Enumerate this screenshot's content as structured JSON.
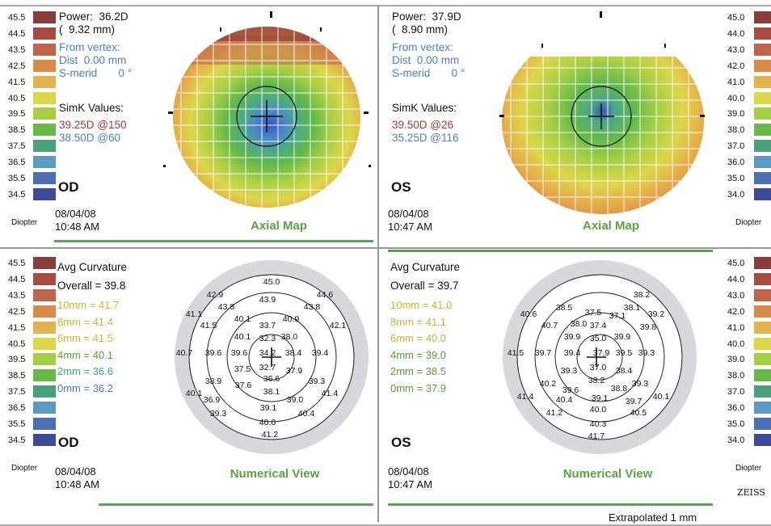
{
  "scales": {
    "values": [
      "45.5",
      "44.5",
      "43.5",
      "42.5",
      "41.5",
      "40.5",
      "39.5",
      "38.5",
      "37.5",
      "36.5",
      "35.5",
      "34.5"
    ],
    "values_right": [
      "45.0",
      "44.0",
      "43.0",
      "42.0",
      "41.0",
      "40.0",
      "39.0",
      "38.0",
      "37.0",
      "36.0",
      "35.0",
      "34.0"
    ],
    "colors": [
      "#8c3b3b",
      "#a84a3f",
      "#c0654a",
      "#d98a4b",
      "#e4b24e",
      "#d9d74a",
      "#a7cf45",
      "#69b84a",
      "#47a07a",
      "#5b9ac4",
      "#4c6fb3",
      "#3d4a99"
    ],
    "unit": "Diopter",
    "unit_short": "Diopter"
  },
  "axial": {
    "od": {
      "power_label": "Power:",
      "power_value": "36.2D",
      "radius": "(  9.32 mm)",
      "from_vertex": "From vertex:",
      "dist": "Dist  0.00 mm",
      "smerid": "S-merid       0 °",
      "simk_title": "SimK Values:",
      "simk1": "39.25D @150",
      "simk2": "38.50D @60",
      "eye": "OD",
      "date": "08/04/08",
      "time": "10:48 AM",
      "title": "Axial Map"
    },
    "os": {
      "power_label": "Power:",
      "power_value": "37.9D",
      "radius": "(  8.90 mm)",
      "from_vertex": "From vertex:",
      "dist": "Dist  0.00 mm",
      "smerid": "S-merid       0 °",
      "simk_title": "SimK Values:",
      "simk1": "39.50D @26",
      "simk2": "35.25D @116",
      "eye": "OS",
      "date": "08/04/08",
      "time": "10:47 AM",
      "title": "Axial Map"
    }
  },
  "numerical": {
    "od": {
      "avg_title": "Avg Curvature",
      "overall": "Overall = 39.8",
      "zones": [
        "10mm = 41.7",
        "8mm = 41.4",
        "6mm = 41.5",
        "4mm = 40.1",
        "2mm = 36.6",
        "0mm = 36.2"
      ],
      "eye": "OD",
      "date": "08/04/08",
      "time": "10:48 AM",
      "title": "Numerical View",
      "values": [
        "45.0",
        "42.9",
        "44.6",
        "43.9",
        "43.8",
        "43.8",
        "41.1",
        "40.1",
        "40.9",
        "41.5",
        "33.7",
        "42.1",
        "40.1",
        "32.3",
        "38.0",
        "40.7",
        "39.6",
        "39.6",
        "34.2",
        "38.4",
        "39.4",
        "37.5",
        "32.7",
        "37.9",
        "38.9",
        "36.6",
        "39.3",
        "37.6",
        "40.1",
        "38.1",
        "41.4",
        "36.9",
        "39.0",
        "39.1",
        "39.3",
        "40.4",
        "40.0",
        "41.2"
      ]
    },
    "os": {
      "avg_title": "Avg Curvature",
      "overall": "Overall = 39.7",
      "zones": [
        "10mm = 41.0",
        "8mm = 41.1",
        "6mm = 40.0",
        "4mm = 39.0",
        "2mm = 38.5",
        "0mm = 37.9"
      ],
      "eye": "OS",
      "date": "08/04/08",
      "time": "10:47 AM",
      "title": "Numerical View",
      "values": [
        "38.2",
        "38.5",
        "38.1",
        "40.6",
        "37.5",
        "37.1",
        "39.2",
        "40.7",
        "38.0",
        "37.4",
        "39.8",
        "39.9",
        "35.0",
        "39.9",
        "41.5",
        "39.7",
        "39.4",
        "37.9",
        "39.5",
        "39.3",
        "37.0",
        "39.3",
        "38.4",
        "40.2",
        "38.2",
        "39.3",
        "39.6",
        "38.8",
        "41.4",
        "40.4",
        "39.1",
        "39.7",
        "40.1",
        "41.2",
        "40.0",
        "40.5",
        "40.3",
        "41.7"
      ]
    }
  },
  "footer": {
    "brand": "ZEISS",
    "extrapolated": "Extrapolated 1 mm"
  }
}
